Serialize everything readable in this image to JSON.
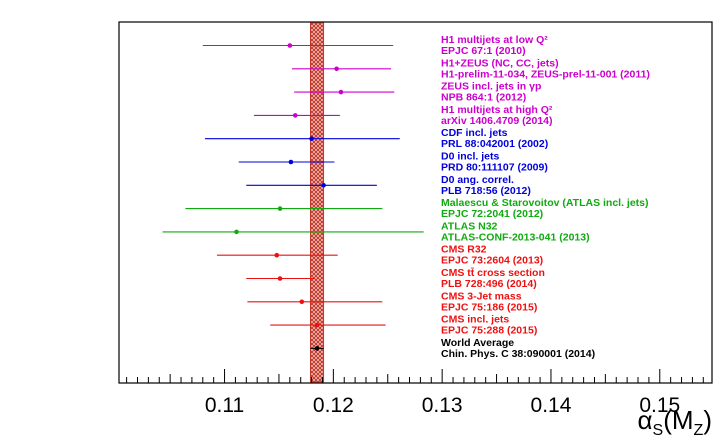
{
  "chart_data": {
    "type": "scatter",
    "title": "",
    "xlabel": "αS(MZ)",
    "xlabel_parts": {
      "main": "α",
      "sub1": "S",
      "open": "(M",
      "sub2": "Z",
      "close": ")"
    },
    "xlim": [
      0.1003,
      0.1548
    ],
    "major_ticks": [
      0.11,
      0.12,
      0.13,
      0.14,
      0.15
    ],
    "tick_labels": [
      "0.11",
      "0.12",
      "0.13",
      "0.14",
      "0.15"
    ],
    "band": {
      "center": 0.1185,
      "low": 0.1179,
      "high": 0.1191,
      "color": "#c0392b"
    },
    "points": [
      {
        "value": 0.116,
        "err_low": 0.108,
        "err_high": 0.1255,
        "color": "#cc00cc",
        "line1": "H1 multijets at low Q²",
        "line2": "EPJC 67:1 (2010)"
      },
      {
        "value": 0.1203,
        "err_low": 0.1162,
        "err_high": 0.1253,
        "color": "#cc00cc",
        "line1": "H1+ZEUS (NC, CC, jets)",
        "line2": "H1-prelim-11-034, ZEUS-prel-11-001 (2011)"
      },
      {
        "value": 0.1207,
        "err_low": 0.1164,
        "err_high": 0.1256,
        "color": "#cc00cc",
        "line1": "ZEUS incl. jets in γp",
        "line2": "NPB 864:1 (2012)"
      },
      {
        "value": 0.1165,
        "err_low": 0.1127,
        "err_high": 0.1206,
        "color": "#cc00cc",
        "line1": "H1 multijets at high Q²",
        "line2": "arXiv 1406.4709 (2014)"
      },
      {
        "value": 0.118,
        "err_low": 0.1082,
        "err_high": 0.1261,
        "color": "#0000dd",
        "line1": "CDF incl. jets",
        "line2": "PRL 88:042001 (2002)"
      },
      {
        "value": 0.1161,
        "err_low": 0.1113,
        "err_high": 0.1201,
        "color": "#0000dd",
        "line1": "D0 incl. jets",
        "line2": "PRD 80:111107 (2009)"
      },
      {
        "value": 0.1191,
        "err_low": 0.112,
        "err_high": 0.124,
        "color": "#0000dd",
        "line1": "D0 ang. correl.",
        "line2": "PLB 718:56 (2012)"
      },
      {
        "value": 0.1151,
        "err_low": 0.1064,
        "err_high": 0.1245,
        "color": "#11aa11",
        "line1": "Malaescu & Starovoitov (ATLAS incl. jets)",
        "line2": "EPJC 72:2041 (2012)"
      },
      {
        "value": 0.1111,
        "err_low": 0.1043,
        "err_high": 0.1283,
        "color": "#11aa11",
        "line1": "ATLAS N32",
        "line2": "ATLAS-CONF-2013-041 (2013)"
      },
      {
        "value": 0.1148,
        "err_low": 0.1093,
        "err_high": 0.1204,
        "color": "#ee1111",
        "line1": "CMS R32",
        "line2": "EPJC 73:2604 (2013)"
      },
      {
        "value": 0.1151,
        "err_low": 0.112,
        "err_high": 0.1183,
        "color": "#ee1111",
        "line1": "CMS tt̄ cross section",
        "line2": "PLB 728:496 (2014)"
      },
      {
        "value": 0.1171,
        "err_low": 0.1121,
        "err_high": 0.1245,
        "color": "#ee1111",
        "line1": "CMS 3-Jet mass",
        "line2": "EPJC 75:186 (2015)"
      },
      {
        "value": 0.1185,
        "err_low": 0.1142,
        "err_high": 0.1248,
        "color": "#ee1111",
        "line1": "CMS incl. jets",
        "line2": "EPJC 75:288 (2015)"
      },
      {
        "value": 0.1185,
        "err_low": 0.1179,
        "err_high": 0.1191,
        "color": "#000000",
        "line1": "World Average",
        "line2": "Chin. Phys. C 38:090001 (2014)"
      }
    ]
  }
}
